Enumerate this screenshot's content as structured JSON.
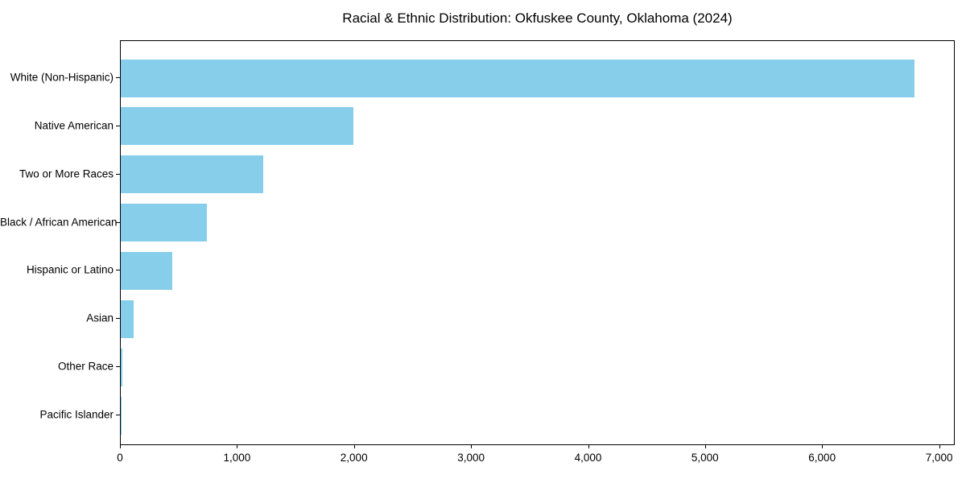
{
  "page": {
    "background_color": "#ffffff",
    "text_color": "#000000"
  },
  "chart_data": {
    "type": "bar",
    "orientation": "horizontal",
    "title": "Racial & Ethnic Distribution: Okfuskee County, Oklahoma (2024)",
    "xlabel": "",
    "ylabel": "",
    "categories": [
      "White (Non-Hispanic)",
      "Native American",
      "Two or More Races",
      "Black / African American",
      "Hispanic or Latino",
      "Asian",
      "Other Race",
      "Pacific Islander"
    ],
    "values": [
      6780,
      1990,
      1215,
      735,
      440,
      110,
      10,
      3
    ],
    "xlim": [
      0,
      7120
    ],
    "xticks": [
      0,
      1000,
      2000,
      3000,
      4000,
      5000,
      6000,
      7000
    ],
    "xtick_labels": [
      "0",
      "1,000",
      "2,000",
      "3,000",
      "4,000",
      "5,000",
      "6,000",
      "7,000"
    ],
    "bar_color": "#87CEEB",
    "grid": false,
    "legend": null
  }
}
